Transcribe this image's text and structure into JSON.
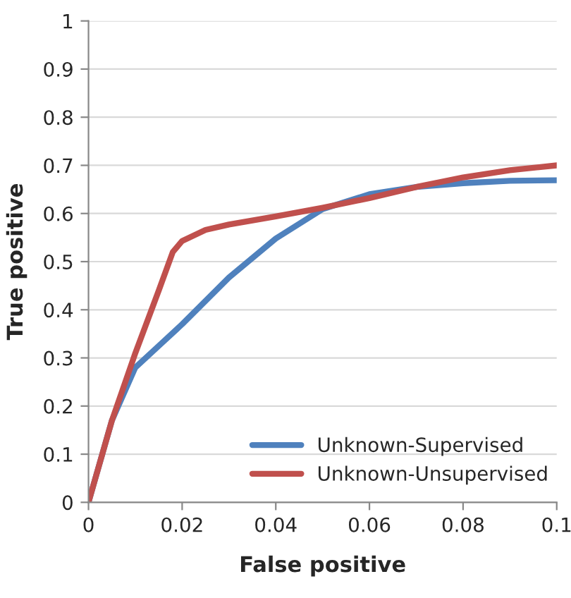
{
  "chart_data": {
    "type": "line",
    "xlabel": "False positive",
    "ylabel": "True positive",
    "xlim": [
      0,
      0.1
    ],
    "xticks": [
      0,
      0.02,
      0.04,
      0.06,
      0.08,
      0.1
    ],
    "ylim": [
      0,
      1
    ],
    "yticks": [
      0,
      0.1,
      0.2,
      0.3,
      0.4,
      0.5,
      0.6,
      0.7,
      0.8,
      0.9,
      1
    ],
    "grid": "y",
    "legend": "bottom right",
    "marker": "none",
    "line_style": "solid",
    "series": [
      {
        "name": "Unknown-Supervised",
        "color": "#4f81bd",
        "x": [
          0,
          0.005,
          0.01,
          0.015,
          0.02,
          0.03,
          0.04,
          0.05,
          0.06,
          0.07,
          0.08,
          0.09,
          0.1
        ],
        "values": [
          0,
          0.17,
          0.28,
          0.325,
          0.37,
          0.467,
          0.548,
          0.609,
          0.64,
          0.655,
          0.663,
          0.668,
          0.669
        ]
      },
      {
        "name": "Unknown-Unsupervised",
        "color": "#c0504d",
        "x": [
          0,
          0.005,
          0.01,
          0.015,
          0.018,
          0.02,
          0.025,
          0.03,
          0.04,
          0.05,
          0.06,
          0.07,
          0.08,
          0.09,
          0.1
        ],
        "values": [
          0,
          0.17,
          0.31,
          0.44,
          0.52,
          0.543,
          0.566,
          0.577,
          0.594,
          0.612,
          0.632,
          0.655,
          0.675,
          0.69,
          0.7
        ]
      }
    ]
  }
}
